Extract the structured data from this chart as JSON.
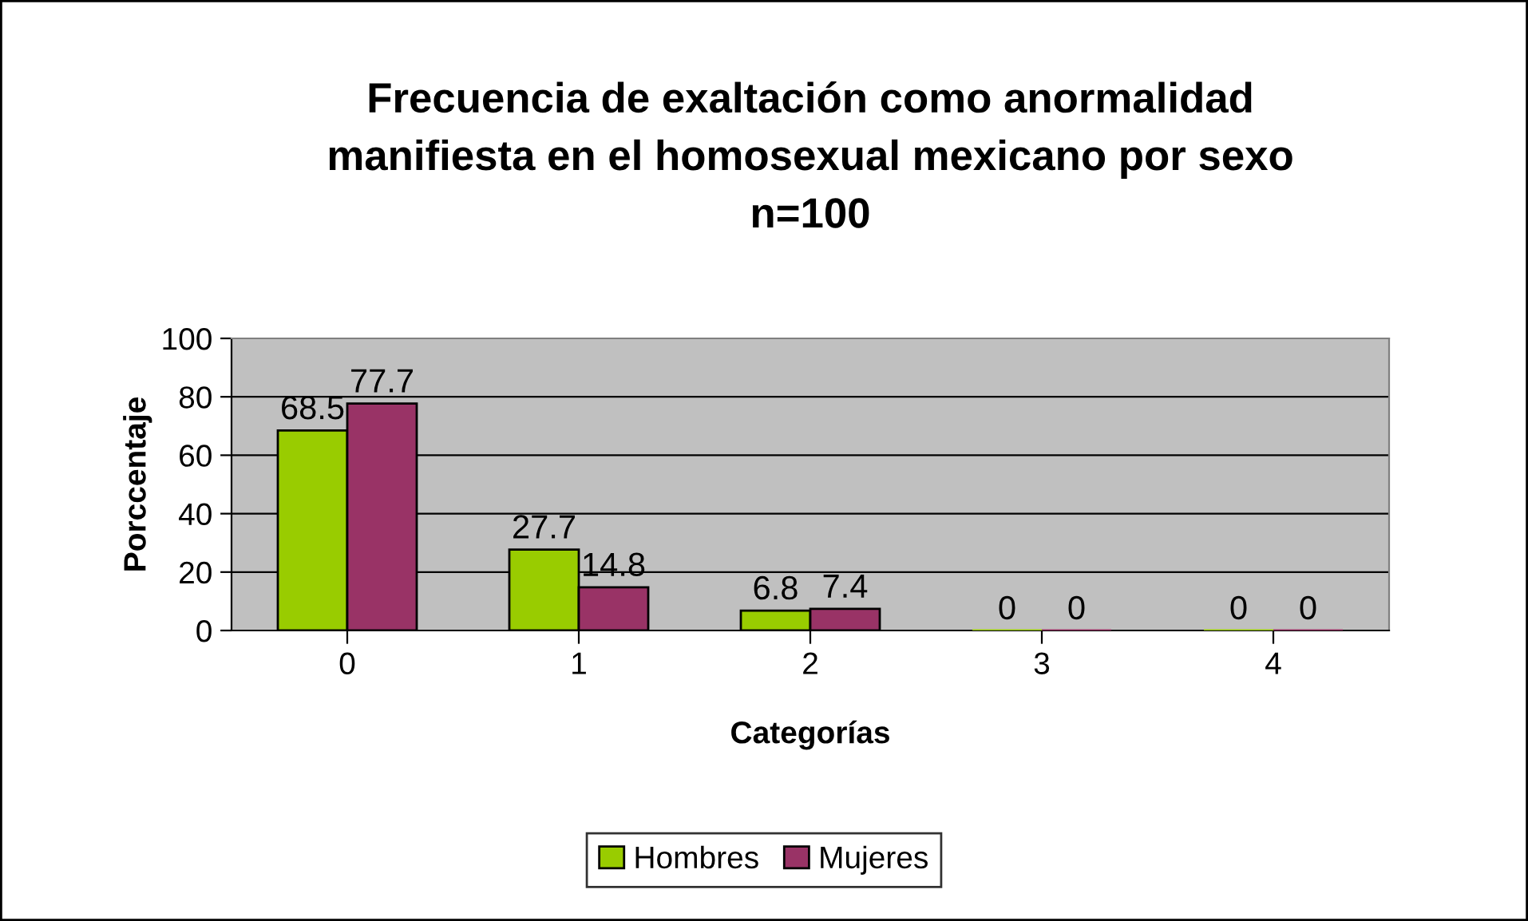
{
  "chart_data": {
    "type": "bar",
    "title": "Frecuencia de exaltación como anormalidad\nmanifiesta en el homosexual mexicano por sexo\nn=100",
    "xlabel": "Categorías",
    "ylabel": "Porccentaje",
    "categories": [
      "0",
      "1",
      "2",
      "3",
      "4"
    ],
    "series": [
      {
        "name": "Hombres",
        "color": "#99cc00",
        "values": [
          68.5,
          27.7,
          6.8,
          0,
          0
        ]
      },
      {
        "name": "Mujeres",
        "color": "#993366",
        "values": [
          77.7,
          14.8,
          7.4,
          0,
          0
        ]
      }
    ],
    "ylim": [
      0,
      100
    ],
    "yticks": [
      0,
      20,
      40,
      60,
      80,
      100
    ],
    "grid": "y",
    "legend": "bottom",
    "data_labels": true
  }
}
